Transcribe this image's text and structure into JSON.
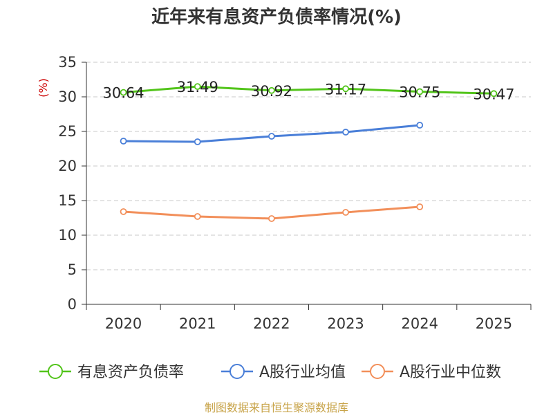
{
  "title": "近年来有息资产负债率情况(%)",
  "unit_label": "(%)",
  "source": "制图数据来自恒生聚源数据库",
  "chart_data": {
    "type": "line",
    "categories": [
      "2020",
      "2021",
      "2022",
      "2023",
      "2024",
      "2025"
    ],
    "ylim": [
      0,
      35
    ],
    "yticks": [
      0,
      5,
      10,
      15,
      20,
      25,
      30,
      35
    ],
    "grid": true,
    "legend_position": "bottom",
    "series": [
      {
        "name": "有息资产负债率",
        "color": "#52c41a",
        "values": [
          30.64,
          31.49,
          30.92,
          31.17,
          30.75,
          30.47
        ],
        "labels": [
          "30.64",
          "31.49",
          "30.92",
          "31.17",
          "30.75",
          "30.47"
        ]
      },
      {
        "name": "A股行业均值",
        "color": "#4a7fd8",
        "values": [
          23.6,
          23.5,
          24.3,
          24.9,
          25.9,
          null
        ]
      },
      {
        "name": "A股行业中位数",
        "color": "#f28f5a",
        "values": [
          13.4,
          12.7,
          12.4,
          13.3,
          14.1,
          null
        ]
      }
    ]
  }
}
